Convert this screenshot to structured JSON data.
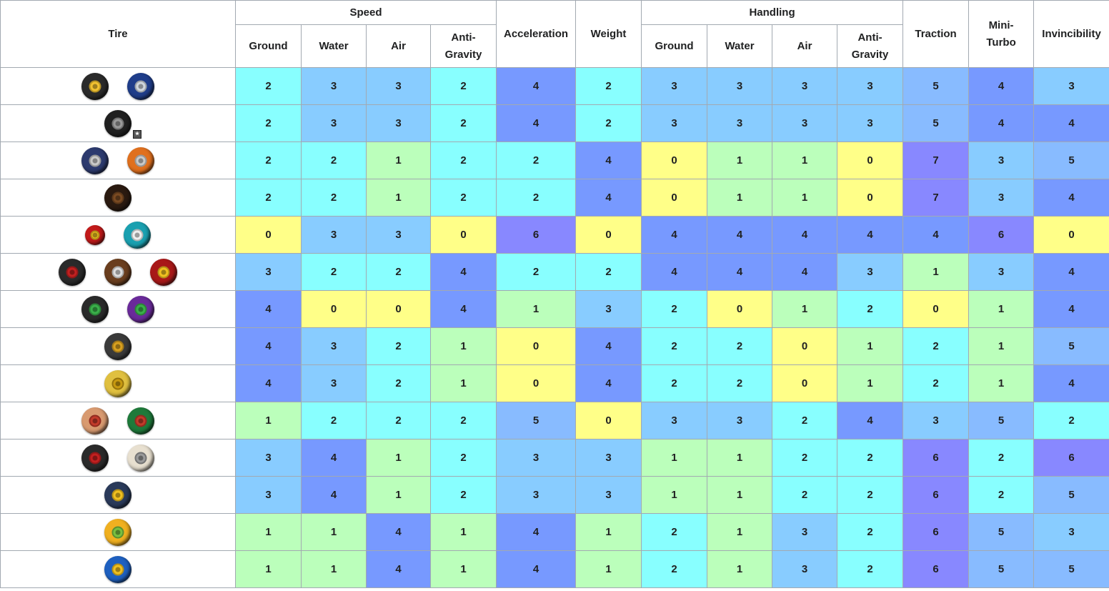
{
  "headers": {
    "tire": "Tire",
    "speed": "Speed",
    "handling": "Handling",
    "acceleration": "Acceleration",
    "weight": "Weight",
    "traction": "Traction",
    "mini_turbo": "Mini-Turbo",
    "invincibility": "Invincibility",
    "sub": {
      "ground": "Ground",
      "water": "Water",
      "air": "Air",
      "anti_gravity": "Anti-Gravity"
    }
  },
  "value_colors": {
    "0": "#ffff88",
    "1": "#bbffbb",
    "2": "#88ffff",
    "3": "#88ccff",
    "4": "#7799ff",
    "5": "#88bbff",
    "6": "#8888ff",
    "7": "#8888ff"
  },
  "rows": [
    {
      "tire_icons": [
        {
          "name": "standard-tire-icon",
          "rim": "#f2c230",
          "tread": "#2a2a2a"
        },
        {
          "name": "blue-standard-tire-icon",
          "rim": "#cfd6dd",
          "tread": "#1f3d8a"
        }
      ],
      "values": [
        2,
        3,
        3,
        2,
        4,
        2,
        3,
        3,
        3,
        3,
        5,
        4,
        3
      ]
    },
    {
      "tire_icons": [
        {
          "name": "gla-tire-icon",
          "rim": "#9a9a9a",
          "tread": "#202020",
          "badge": "★"
        }
      ],
      "values": [
        2,
        3,
        3,
        2,
        4,
        2,
        3,
        3,
        3,
        3,
        5,
        4,
        4
      ]
    },
    {
      "tire_icons": [
        {
          "name": "monster-tire-icon",
          "rim": "#c9c9c9",
          "tread": "#2c3a6e"
        },
        {
          "name": "hot-monster-tire-icon",
          "rim": "#c9c9c9",
          "tread": "#e0701e"
        }
      ],
      "values": [
        2,
        2,
        1,
        2,
        2,
        4,
        0,
        1,
        1,
        0,
        7,
        3,
        5
      ]
    },
    {
      "tire_icons": [
        {
          "name": "ancient-tire-icon",
          "rim": "#7a4a22",
          "tread": "#2a1a10"
        }
      ],
      "values": [
        2,
        2,
        1,
        2,
        2,
        4,
        0,
        1,
        1,
        0,
        7,
        3,
        4
      ]
    },
    {
      "tire_icons": [
        {
          "name": "roller-tire-icon",
          "rim": "#f0c020",
          "tread": "#c21a1a"
        },
        {
          "name": "azure-roller-tire-icon",
          "rim": "#eeeeee",
          "tread": "#1aa0b0"
        }
      ],
      "values": [
        0,
        3,
        3,
        0,
        6,
        0,
        4,
        4,
        4,
        4,
        4,
        6,
        0
      ]
    },
    {
      "tire_icons": [
        {
          "name": "slim-tire-icon",
          "rim": "#c22020",
          "tread": "#2a2a2a"
        },
        {
          "name": "wood-tire-icon",
          "rim": "#dddddd",
          "tread": "#6a3e1e"
        },
        {
          "name": "crimson-slim-tire-icon",
          "rim": "#f0c020",
          "tread": "#a81818"
        }
      ],
      "values": [
        3,
        2,
        2,
        4,
        2,
        2,
        4,
        4,
        4,
        3,
        1,
        3,
        4
      ]
    },
    {
      "tire_icons": [
        {
          "name": "slick-tire-icon",
          "rim": "#3ab04a",
          "tread": "#2a2a2a"
        },
        {
          "name": "cyber-slick-tire-icon",
          "rim": "#3ab04a",
          "tread": "#6a2a9a"
        }
      ],
      "values": [
        4,
        0,
        0,
        4,
        1,
        3,
        2,
        0,
        1,
        2,
        0,
        1,
        4
      ]
    },
    {
      "tire_icons": [
        {
          "name": "metal-tire-icon",
          "rim": "#d8a020",
          "tread": "#3a3a3a"
        }
      ],
      "values": [
        4,
        3,
        2,
        1,
        0,
        4,
        2,
        2,
        0,
        1,
        2,
        1,
        5
      ]
    },
    {
      "tire_icons": [
        {
          "name": "gold-tire-icon",
          "rim": "#c89a10",
          "tread": "#e0c040"
        }
      ],
      "values": [
        4,
        3,
        2,
        1,
        0,
        4,
        2,
        2,
        0,
        1,
        2,
        1,
        4
      ]
    },
    {
      "tire_icons": [
        {
          "name": "button-tire-icon",
          "rim": "#c23a2a",
          "tread": "#d89a70"
        },
        {
          "name": "leaf-tire-icon",
          "rim": "#c23a2a",
          "tread": "#1e7a3a"
        }
      ],
      "values": [
        1,
        2,
        2,
        2,
        5,
        0,
        3,
        3,
        2,
        4,
        3,
        5,
        2
      ]
    },
    {
      "tire_icons": [
        {
          "name": "off-road-tire-icon",
          "rim": "#c22020",
          "tread": "#2a2a2a"
        },
        {
          "name": "retro-off-road-tire-icon",
          "rim": "#9a9a9a",
          "tread": "#e8e0d0"
        }
      ],
      "values": [
        3,
        4,
        1,
        2,
        3,
        3,
        1,
        1,
        2,
        2,
        6,
        2,
        6
      ]
    },
    {
      "tire_icons": [
        {
          "name": "triforce-tire-icon",
          "rim": "#f0c020",
          "tread": "#2a3a5a"
        }
      ],
      "values": [
        3,
        4,
        1,
        2,
        3,
        3,
        1,
        1,
        2,
        2,
        6,
        2,
        5
      ]
    },
    {
      "tire_icons": [
        {
          "name": "sponge-tire-icon",
          "rim": "#7ac040",
          "tread": "#f0b020"
        }
      ],
      "values": [
        1,
        1,
        4,
        1,
        4,
        1,
        2,
        1,
        3,
        2,
        6,
        5,
        3
      ]
    },
    {
      "tire_icons": [
        {
          "name": "cushion-tire-icon",
          "rim": "#f0c020",
          "tread": "#1e60c0"
        }
      ],
      "values": [
        1,
        1,
        4,
        1,
        4,
        1,
        2,
        1,
        3,
        2,
        6,
        5,
        5
      ]
    }
  ]
}
